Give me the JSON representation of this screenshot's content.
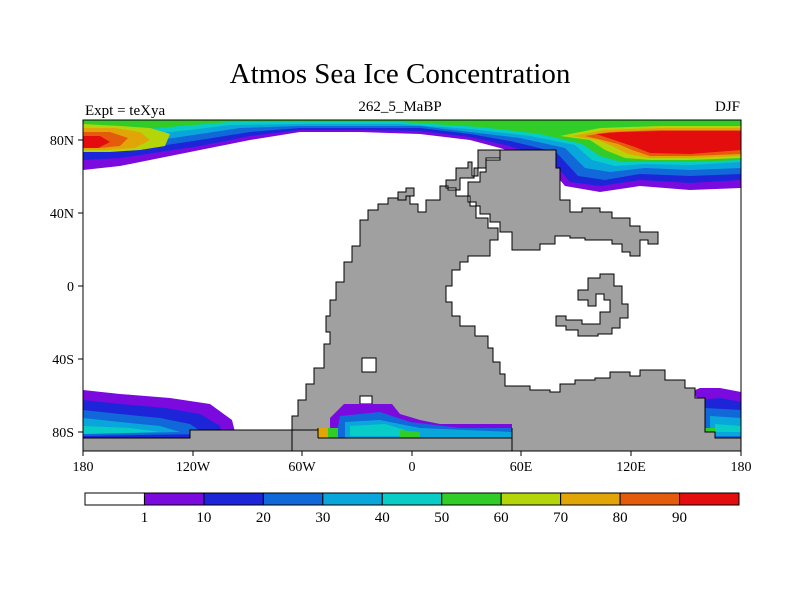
{
  "title": "Atmos Sea Ice Concentration",
  "left_string": "Expt = teXya",
  "center_string": "262_5_MaBP",
  "right_string": "DJF",
  "colors": {
    "land": "#a0a0a0",
    "levels": [
      "#ffffff",
      "#7b0adf",
      "#1c25d8",
      "#1168d8",
      "#09a6dc",
      "#08ccc6",
      "#32cc29",
      "#b4d509",
      "#e1a508",
      "#e45c0b",
      "#e30d0d"
    ]
  },
  "chart_data": {
    "type": "map",
    "projection": "cylindrical-equidistant",
    "variable": "Atmos Sea Ice Concentration",
    "season": "DJF",
    "lon_ticks": [
      "180",
      "120W",
      "60W",
      "0",
      "60E",
      "120E",
      "180"
    ],
    "lat_ticks": [
      "80N",
      "40N",
      "0",
      "40S",
      "80S"
    ],
    "colorbar": {
      "labels": [
        "1",
        "10",
        "20",
        "30",
        "40",
        "50",
        "60",
        "70",
        "80",
        "90"
      ],
      "bins": 11
    }
  }
}
